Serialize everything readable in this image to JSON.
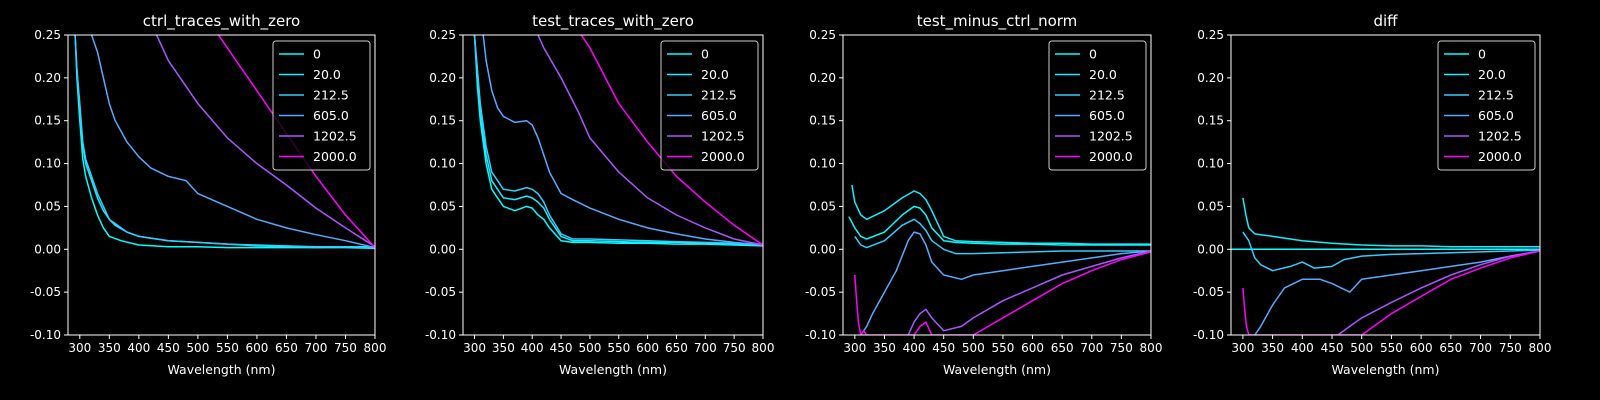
{
  "chart_data": [
    {
      "type": "line",
      "title": "ctrl_traces_with_zero",
      "xlabel": "Wavelength (nm)",
      "ylabel": "",
      "xlim": [
        280,
        800
      ],
      "ylim": [
        -0.1,
        0.25
      ],
      "xticks": [
        300,
        350,
        400,
        450,
        500,
        550,
        600,
        650,
        700,
        750,
        800
      ],
      "yticks": [
        -0.1,
        -0.05,
        0.0,
        0.05,
        0.1,
        0.15,
        0.2,
        0.25
      ],
      "legend_position": "top-right",
      "series": [
        {
          "name": "0",
          "color": "#00ffff",
          "x": [
            292,
            295,
            300,
            305,
            310,
            320,
            330,
            340,
            350,
            370,
            400,
            450,
            500,
            550,
            600,
            650,
            700,
            750,
            800
          ],
          "y": [
            0.25,
            0.2,
            0.15,
            0.105,
            0.085,
            0.06,
            0.04,
            0.025,
            0.015,
            0.01,
            0.005,
            0.003,
            0.003,
            0.002,
            0.002,
            0.002,
            0.002,
            0.003,
            0.003
          ]
        },
        {
          "name": "20.0",
          "color": "#11eeff",
          "x": [
            292,
            295,
            300,
            305,
            310,
            320,
            330,
            340,
            350,
            360,
            380,
            400,
            450,
            500,
            550,
            600,
            650,
            700,
            750,
            800
          ],
          "y": [
            0.25,
            0.21,
            0.16,
            0.12,
            0.1,
            0.08,
            0.06,
            0.045,
            0.035,
            0.028,
            0.02,
            0.015,
            0.01,
            0.008,
            0.006,
            0.004,
            0.003,
            0.002,
            0.002,
            0.001
          ]
        },
        {
          "name": "212.5",
          "color": "#33ccff",
          "x": [
            292,
            295,
            300,
            305,
            310,
            320,
            330,
            340,
            350,
            360,
            380,
            400,
            450,
            500,
            550,
            600,
            650,
            700,
            750,
            800
          ],
          "y": [
            0.25,
            0.21,
            0.17,
            0.125,
            0.105,
            0.085,
            0.065,
            0.05,
            0.035,
            0.03,
            0.02,
            0.015,
            0.01,
            0.008,
            0.006,
            0.005,
            0.004,
            0.003,
            0.003,
            0.002
          ]
        },
        {
          "name": "605.0",
          "color": "#55aaff",
          "x": [
            320,
            330,
            340,
            350,
            360,
            380,
            400,
            420,
            450,
            480,
            500,
            550,
            600,
            650,
            700,
            750,
            800
          ],
          "y": [
            0.25,
            0.23,
            0.2,
            0.17,
            0.15,
            0.125,
            0.108,
            0.095,
            0.085,
            0.08,
            0.065,
            0.05,
            0.035,
            0.025,
            0.017,
            0.01,
            0.002
          ]
        },
        {
          "name": "1202.5",
          "color": "#aa55ff",
          "x": [
            430,
            450,
            480,
            500,
            550,
            600,
            650,
            700,
            750,
            800
          ],
          "y": [
            0.25,
            0.22,
            0.19,
            0.17,
            0.13,
            0.1,
            0.075,
            0.048,
            0.025,
            0.003
          ]
        },
        {
          "name": "2000.0",
          "color": "#ff00ff",
          "x": [
            535,
            550,
            600,
            650,
            700,
            750,
            800
          ],
          "y": [
            0.25,
            0.235,
            0.185,
            0.135,
            0.085,
            0.04,
            0.002
          ]
        }
      ]
    },
    {
      "type": "line",
      "title": "test_traces_with_zero",
      "xlabel": "Wavelength (nm)",
      "ylabel": "",
      "xlim": [
        280,
        800
      ],
      "ylim": [
        -0.1,
        0.25
      ],
      "xticks": [
        300,
        350,
        400,
        450,
        500,
        550,
        600,
        650,
        700,
        750,
        800
      ],
      "yticks": [
        -0.1,
        -0.05,
        0.0,
        0.05,
        0.1,
        0.15,
        0.2,
        0.25
      ],
      "legend_position": "top-right",
      "series": [
        {
          "name": "0",
          "color": "#00ffff",
          "x": [
            300,
            305,
            310,
            320,
            330,
            350,
            370,
            390,
            400,
            410,
            420,
            430,
            450,
            470,
            500,
            550,
            600,
            650,
            700,
            750,
            800
          ],
          "y": [
            0.25,
            0.19,
            0.15,
            0.1,
            0.07,
            0.05,
            0.045,
            0.05,
            0.048,
            0.04,
            0.035,
            0.025,
            0.01,
            0.008,
            0.008,
            0.007,
            0.007,
            0.006,
            0.006,
            0.005,
            0.004
          ]
        },
        {
          "name": "20.0",
          "color": "#11eeff",
          "x": [
            300,
            305,
            310,
            320,
            330,
            350,
            370,
            390,
            400,
            410,
            420,
            430,
            450,
            470,
            500,
            550,
            600,
            650,
            700,
            750,
            800
          ],
          "y": [
            0.25,
            0.2,
            0.16,
            0.11,
            0.08,
            0.06,
            0.058,
            0.062,
            0.06,
            0.055,
            0.048,
            0.035,
            0.015,
            0.01,
            0.01,
            0.009,
            0.008,
            0.008,
            0.007,
            0.006,
            0.005
          ]
        },
        {
          "name": "212.5",
          "color": "#33ccff",
          "x": [
            300,
            305,
            310,
            320,
            330,
            350,
            370,
            390,
            400,
            410,
            420,
            430,
            450,
            470,
            500,
            550,
            600,
            650,
            700,
            750,
            800
          ],
          "y": [
            0.25,
            0.21,
            0.17,
            0.12,
            0.09,
            0.07,
            0.068,
            0.072,
            0.07,
            0.065,
            0.055,
            0.04,
            0.018,
            0.012,
            0.012,
            0.011,
            0.01,
            0.009,
            0.008,
            0.007,
            0.006
          ]
        },
        {
          "name": "605.0",
          "color": "#55aaff",
          "x": [
            315,
            320,
            330,
            340,
            350,
            370,
            390,
            400,
            410,
            420,
            430,
            450,
            470,
            500,
            550,
            600,
            650,
            700,
            750,
            800
          ],
          "y": [
            0.25,
            0.22,
            0.185,
            0.165,
            0.155,
            0.148,
            0.15,
            0.145,
            0.13,
            0.11,
            0.09,
            0.065,
            0.058,
            0.048,
            0.035,
            0.025,
            0.018,
            0.012,
            0.008,
            0.005
          ]
        },
        {
          "name": "1202.5",
          "color": "#aa55ff",
          "x": [
            410,
            420,
            450,
            480,
            500,
            550,
            600,
            650,
            700,
            750,
            800
          ],
          "y": [
            0.25,
            0.235,
            0.2,
            0.16,
            0.13,
            0.09,
            0.06,
            0.04,
            0.025,
            0.012,
            0.005
          ]
        },
        {
          "name": "2000.0",
          "color": "#ff00ff",
          "x": [
            485,
            500,
            550,
            600,
            650,
            700,
            750,
            800
          ],
          "y": [
            0.25,
            0.235,
            0.17,
            0.125,
            0.085,
            0.055,
            0.028,
            0.005
          ]
        }
      ]
    },
    {
      "type": "line",
      "title": "test_minus_ctrl_norm",
      "xlabel": "Wavelength (nm)",
      "ylabel": "",
      "xlim": [
        280,
        800
      ],
      "ylim": [
        -0.1,
        0.25
      ],
      "xticks": [
        300,
        350,
        400,
        450,
        500,
        550,
        600,
        650,
        700,
        750,
        800
      ],
      "yticks": [
        -0.1,
        -0.05,
        0.0,
        0.05,
        0.1,
        0.15,
        0.2,
        0.25
      ],
      "legend_position": "top-right",
      "series": [
        {
          "name": "0",
          "color": "#00ffff",
          "x": [
            290,
            300,
            310,
            320,
            350,
            380,
            400,
            410,
            420,
            430,
            450,
            470,
            500,
            550,
            600,
            650,
            700,
            750,
            800
          ],
          "y": [
            0.038,
            0.025,
            0.015,
            0.012,
            0.02,
            0.04,
            0.05,
            0.048,
            0.04,
            0.025,
            0.01,
            0.008,
            0.007,
            0.006,
            0.006,
            0.005,
            0.005,
            0.005,
            0.005
          ]
        },
        {
          "name": "20.0",
          "color": "#11eeff",
          "x": [
            295,
            300,
            310,
            320,
            350,
            380,
            400,
            410,
            420,
            430,
            450,
            470,
            500,
            550,
            600,
            650,
            700,
            750,
            800
          ],
          "y": [
            0.075,
            0.055,
            0.04,
            0.035,
            0.045,
            0.06,
            0.068,
            0.065,
            0.058,
            0.045,
            0.015,
            0.01,
            0.009,
            0.008,
            0.007,
            0.007,
            0.006,
            0.006,
            0.006
          ]
        },
        {
          "name": "212.5",
          "color": "#33ccff",
          "x": [
            300,
            310,
            320,
            350,
            380,
            400,
            410,
            420,
            430,
            450,
            470,
            500,
            550,
            600,
            650,
            700,
            750,
            800
          ],
          "y": [
            0.015,
            0.005,
            0.002,
            0.01,
            0.028,
            0.035,
            0.03,
            0.022,
            0.01,
            0.0,
            -0.005,
            -0.005,
            -0.004,
            -0.003,
            -0.002,
            -0.002,
            -0.002,
            -0.002
          ]
        },
        {
          "name": "605.0",
          "color": "#55aaff",
          "x": [
            310,
            320,
            330,
            350,
            370,
            390,
            400,
            410,
            420,
            430,
            450,
            480,
            500,
            550,
            600,
            650,
            700,
            750,
            800
          ],
          "y": [
            -0.1,
            -0.09,
            -0.075,
            -0.05,
            -0.025,
            0.01,
            0.02,
            0.018,
            0.005,
            -0.015,
            -0.03,
            -0.035,
            -0.03,
            -0.025,
            -0.02,
            -0.015,
            -0.01,
            -0.005,
            -0.002
          ]
        },
        {
          "name": "1202.5",
          "color": "#aa55ff",
          "x": [
            390,
            400,
            410,
            420,
            430,
            450,
            480,
            500,
            550,
            600,
            650,
            700,
            750,
            800
          ],
          "y": [
            -0.1,
            -0.085,
            -0.075,
            -0.07,
            -0.08,
            -0.095,
            -0.09,
            -0.08,
            -0.06,
            -0.045,
            -0.03,
            -0.02,
            -0.01,
            -0.002
          ]
        },
        {
          "name": "2000.0",
          "color": "#ff00ff",
          "x": [
            300,
            303,
            306,
            310,
            315,
            320,
            325,
            330,
            400,
            410,
            420,
            430,
            500,
            550,
            600,
            650,
            700,
            750,
            800
          ],
          "y": [
            -0.03,
            -0.06,
            -0.085,
            -0.1,
            -0.095,
            -0.1,
            -0.1,
            -0.1,
            -0.1,
            -0.09,
            -0.085,
            -0.1,
            -0.1,
            -0.08,
            -0.06,
            -0.04,
            -0.025,
            -0.012,
            -0.003
          ]
        }
      ]
    },
    {
      "type": "line",
      "title": "diff",
      "xlabel": "Wavelength (nm)",
      "ylabel": "",
      "xlim": [
        280,
        800
      ],
      "ylim": [
        -0.1,
        0.25
      ],
      "xticks": [
        300,
        350,
        400,
        450,
        500,
        550,
        600,
        650,
        700,
        750,
        800
      ],
      "yticks": [
        -0.1,
        -0.05,
        0.0,
        0.05,
        0.1,
        0.15,
        0.2,
        0.25
      ],
      "legend_position": "top-right",
      "series": [
        {
          "name": "0",
          "color": "#00ffff",
          "x": [
            280,
            800
          ],
          "y": [
            0.0,
            0.0
          ]
        },
        {
          "name": "20.0",
          "color": "#11eeff",
          "x": [
            300,
            305,
            310,
            320,
            350,
            400,
            450,
            500,
            550,
            600,
            650,
            700,
            750,
            800
          ],
          "y": [
            0.06,
            0.04,
            0.025,
            0.018,
            0.015,
            0.01,
            0.007,
            0.005,
            0.004,
            0.004,
            0.003,
            0.003,
            0.003,
            0.003
          ]
        },
        {
          "name": "212.5",
          "color": "#33ccff",
          "x": [
            300,
            310,
            320,
            330,
            350,
            380,
            400,
            420,
            450,
            470,
            500,
            550,
            600,
            650,
            700,
            750,
            800
          ],
          "y": [
            0.02,
            0.01,
            -0.01,
            -0.018,
            -0.025,
            -0.02,
            -0.015,
            -0.022,
            -0.02,
            -0.012,
            -0.008,
            -0.006,
            -0.005,
            -0.004,
            -0.003,
            -0.002,
            -0.001
          ]
        },
        {
          "name": "605.0",
          "color": "#55aaff",
          "x": [
            320,
            330,
            350,
            370,
            400,
            430,
            450,
            480,
            500,
            550,
            600,
            650,
            700,
            750,
            800
          ],
          "y": [
            -0.1,
            -0.09,
            -0.065,
            -0.045,
            -0.035,
            -0.035,
            -0.04,
            -0.05,
            -0.035,
            -0.03,
            -0.025,
            -0.02,
            -0.015,
            -0.008,
            -0.002
          ]
        },
        {
          "name": "1202.5",
          "color": "#aa55ff",
          "x": [
            460,
            480,
            500,
            550,
            600,
            650,
            700,
            750,
            800
          ],
          "y": [
            -0.1,
            -0.09,
            -0.08,
            -0.062,
            -0.045,
            -0.03,
            -0.018,
            -0.008,
            -0.002
          ]
        },
        {
          "name": "2000.0",
          "color": "#ff00ff",
          "x": [
            300,
            303,
            306,
            310,
            315,
            490,
            500,
            550,
            600,
            650,
            700,
            750,
            800
          ],
          "y": [
            -0.045,
            -0.07,
            -0.09,
            -0.1,
            -0.1,
            -0.1,
            -0.1,
            -0.075,
            -0.055,
            -0.035,
            -0.022,
            -0.01,
            -0.002
          ]
        }
      ]
    }
  ]
}
